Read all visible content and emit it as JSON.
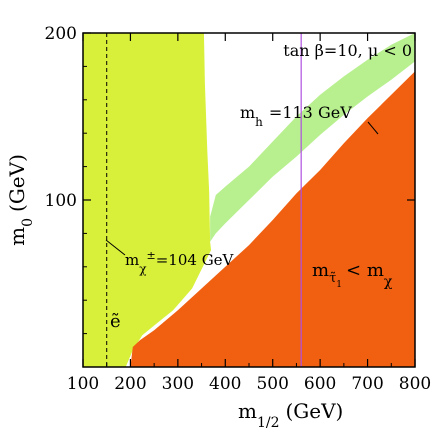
{
  "chart_data": {
    "type": "area",
    "title": "",
    "xlabel": "m",
    "xlabel_sub": "1/2",
    "xlabel_unit": "(GeV)",
    "ylabel": "m",
    "ylabel_sub": "0",
    "ylabel_unit": "(GeV)",
    "xlim": [
      100,
      800
    ],
    "ylim": [
      0,
      200
    ],
    "x_ticks": [
      100,
      200,
      300,
      400,
      500,
      600,
      700,
      800
    ],
    "y_ticks": [
      100,
      200
    ],
    "x_tick_labels": [
      "100",
      "200",
      "300",
      "400",
      "500",
      "600",
      "700",
      "800"
    ],
    "y_tick_labels": [
      "100",
      "200"
    ],
    "legend_text": "tan  β=10, μ < 0",
    "colors": {
      "yellow": "#d8f03a",
      "green": "#b8f090",
      "orange": "#f06010",
      "violet": "#b050e0",
      "dashed": "#000000"
    },
    "regions": [
      {
        "name": "excluded-yellow",
        "color": "#d8f03a",
        "polygon": [
          [
            100,
            0
          ],
          [
            100,
            200
          ],
          [
            355,
            200
          ],
          [
            357,
            170
          ],
          [
            362,
            130
          ],
          [
            366,
            105
          ],
          [
            368,
            75
          ],
          [
            370,
            70
          ],
          [
            330,
            47
          ],
          [
            290,
            34
          ],
          [
            255,
            26
          ],
          [
            225,
            19
          ],
          [
            205,
            10
          ],
          [
            190,
            0
          ]
        ]
      },
      {
        "name": "green-band",
        "color": "#b8f090",
        "polygon": [
          [
            368,
            75
          ],
          [
            368,
            90
          ],
          [
            380,
            103
          ],
          [
            400,
            108
          ],
          [
            450,
            120
          ],
          [
            500,
            135
          ],
          [
            550,
            150
          ],
          [
            600,
            163
          ],
          [
            650,
            174
          ],
          [
            700,
            184
          ],
          [
            750,
            193
          ],
          [
            800,
            200
          ],
          [
            800,
            183
          ],
          [
            750,
            172
          ],
          [
            700,
            162
          ],
          [
            650,
            151
          ],
          [
            600,
            139
          ],
          [
            550,
            126
          ],
          [
            500,
            114
          ],
          [
            450,
            100
          ],
          [
            400,
            86
          ],
          [
            380,
            80
          ]
        ]
      },
      {
        "name": "excluded-orange",
        "color": "#f06010",
        "polygon": [
          [
            200,
            0
          ],
          [
            205,
            12
          ],
          [
            220,
            16
          ],
          [
            250,
            22
          ],
          [
            300,
            34
          ],
          [
            350,
            47
          ],
          [
            400,
            60
          ],
          [
            450,
            73
          ],
          [
            500,
            88
          ],
          [
            550,
            104
          ],
          [
            600,
            118
          ],
          [
            650,
            134
          ],
          [
            700,
            149
          ],
          [
            750,
            163
          ],
          [
            800,
            177
          ],
          [
            800,
            0
          ]
        ]
      }
    ],
    "mh_contour": {
      "label": "m",
      "label_sub": "h",
      "label_value": "=113 GeV",
      "points": [
        [
          338,
          200
        ],
        [
          345,
          170
        ],
        [
          355,
          150
        ],
        [
          362,
          130
        ],
        [
          368,
          118
        ],
        [
          380,
          116
        ],
        [
          400,
          118
        ],
        [
          450,
          126
        ],
        [
          500,
          138
        ],
        [
          550,
          150
        ],
        [
          600,
          163
        ],
        [
          650,
          174
        ],
        [
          700,
          184
        ],
        [
          750,
          193
        ],
        [
          800,
          200
        ]
      ]
    },
    "stau_lsp_label": {
      "text": "m",
      "sub": "τ̃",
      "subsub": "1",
      "rel": "< m",
      "sub2": "χ"
    },
    "chargino_line": {
      "x": 150,
      "style": "dashed",
      "label": "m",
      "label_sub": "χ",
      "label_sup": "±",
      "label_value": "=104 GeV"
    },
    "selectron_label": "ẽ",
    "vertical_line": {
      "x": 560,
      "color": "#b050e0"
    }
  }
}
